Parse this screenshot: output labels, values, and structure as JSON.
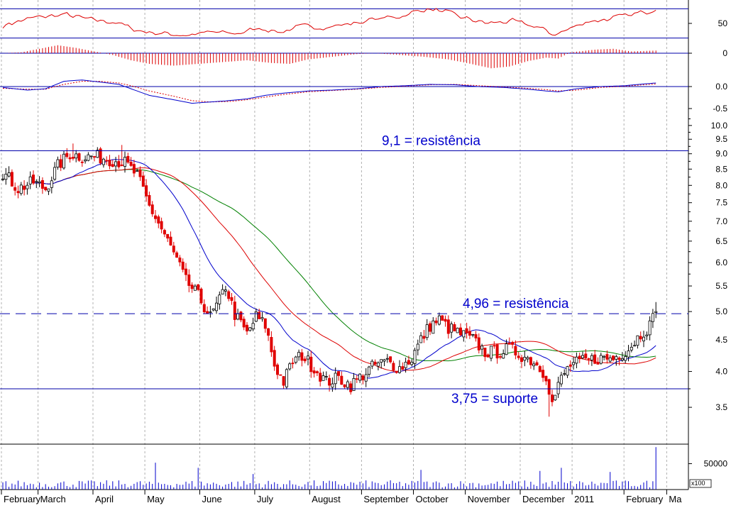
{
  "chart_data": {
    "type": "candlestick",
    "colors": {
      "up": "#000000",
      "down": "#e00000",
      "ma_short": "#0000cc",
      "ma_mid": "#dd0000",
      "ma_long": "#008000",
      "level_line": "#0000aa",
      "annotation": "#0000cc",
      "rsi": "#dd0000",
      "histogram": "#dd0000",
      "macd": "#0000cc",
      "signal": "#dd0000",
      "volume": "#0000cc"
    },
    "x_axis": {
      "months": [
        "February",
        "March",
        "April",
        "May",
        "June",
        "July",
        "August",
        "September",
        "October",
        "November",
        "December",
        "2011",
        "February",
        "Ma"
      ],
      "month_start_index": [
        0,
        12,
        30,
        47,
        65,
        83,
        101,
        118,
        135,
        152,
        170,
        187,
        204,
        218
      ]
    },
    "price_panel": {
      "scale": "log",
      "ylim": [
        3.1,
        10.4
      ],
      "ticks": [
        "3.5",
        "4.0",
        "4.5",
        "5.0",
        "5.5",
        "6.0",
        "6.5",
        "7.0",
        "7.5",
        "8.0",
        "8.5",
        "9.0",
        "9.5",
        "10.0"
      ],
      "levels": [
        {
          "value": 9.1,
          "label": "9,1 = resistência",
          "style": "solid"
        },
        {
          "value": 4.96,
          "label": "4,96 = resistência",
          "style": "dashed"
        },
        {
          "value": 3.75,
          "label": "3,75 = suporte",
          "style": "solid"
        }
      ],
      "close_anchors": [
        [
          0,
          8.4
        ],
        [
          5,
          7.9
        ],
        [
          10,
          8.1
        ],
        [
          14,
          7.9
        ],
        [
          18,
          8.6
        ],
        [
          22,
          9.0
        ],
        [
          26,
          8.9
        ],
        [
          31,
          8.9
        ],
        [
          36,
          8.8
        ],
        [
          40,
          8.7
        ],
        [
          44,
          8.3
        ],
        [
          48,
          7.4
        ],
        [
          52,
          6.8
        ],
        [
          56,
          6.2
        ],
        [
          60,
          5.6
        ],
        [
          64,
          5.3
        ],
        [
          68,
          4.9
        ],
        [
          71,
          5.2
        ],
        [
          73,
          5.5
        ],
        [
          76,
          4.95
        ],
        [
          80,
          4.6
        ],
        [
          83,
          4.9
        ],
        [
          86,
          4.75
        ],
        [
          89,
          4.1
        ],
        [
          92,
          3.85
        ],
        [
          95,
          4.15
        ],
        [
          98,
          4.25
        ],
        [
          102,
          4.05
        ],
        [
          106,
          3.85
        ],
        [
          110,
          3.9
        ],
        [
          114,
          3.8
        ],
        [
          118,
          3.95
        ],
        [
          122,
          4.1
        ],
        [
          126,
          4.15
        ],
        [
          130,
          4.05
        ],
        [
          134,
          4.2
        ],
        [
          137,
          4.5
        ],
        [
          140,
          4.75
        ],
        [
          143,
          4.85
        ],
        [
          146,
          4.7
        ],
        [
          150,
          4.6
        ],
        [
          154,
          4.5
        ],
        [
          158,
          4.3
        ],
        [
          162,
          4.3
        ],
        [
          166,
          4.35
        ],
        [
          170,
          4.25
        ],
        [
          174,
          4.15
        ],
        [
          178,
          3.95
        ],
        [
          180,
          3.55
        ],
        [
          183,
          3.9
        ],
        [
          186,
          4.1
        ],
        [
          190,
          4.15
        ],
        [
          195,
          4.2
        ],
        [
          200,
          4.2
        ],
        [
          205,
          4.35
        ],
        [
          209,
          4.6
        ],
        [
          212,
          4.75
        ],
        [
          214,
          5.0
        ]
      ]
    },
    "rsi_panel": {
      "ticks": [
        "50"
      ],
      "lines": [
        70,
        30
      ],
      "anchors": [
        [
          0,
          48
        ],
        [
          10,
          58
        ],
        [
          20,
          62
        ],
        [
          28,
          55
        ],
        [
          36,
          52
        ],
        [
          44,
          40
        ],
        [
          52,
          36
        ],
        [
          60,
          34
        ],
        [
          68,
          38
        ],
        [
          76,
          36
        ],
        [
          84,
          44
        ],
        [
          90,
          38
        ],
        [
          98,
          46
        ],
        [
          106,
          45
        ],
        [
          114,
          50
        ],
        [
          122,
          56
        ],
        [
          130,
          60
        ],
        [
          138,
          70
        ],
        [
          144,
          66
        ],
        [
          150,
          58
        ],
        [
          158,
          50
        ],
        [
          166,
          53
        ],
        [
          174,
          46
        ],
        [
          180,
          35
        ],
        [
          184,
          40
        ],
        [
          190,
          52
        ],
        [
          198,
          56
        ],
        [
          206,
          62
        ],
        [
          212,
          68
        ],
        [
          214,
          73
        ]
      ]
    },
    "histogram_panel": {
      "ticks": [
        "0"
      ],
      "anchors": [
        [
          0,
          0
        ],
        [
          6,
          0.05
        ],
        [
          12,
          0.25
        ],
        [
          18,
          0.45
        ],
        [
          24,
          0.3
        ],
        [
          30,
          0.1
        ],
        [
          36,
          -0.1
        ],
        [
          42,
          -0.4
        ],
        [
          48,
          -0.6
        ],
        [
          56,
          -0.7
        ],
        [
          64,
          -0.6
        ],
        [
          72,
          -0.5
        ],
        [
          80,
          -0.4
        ],
        [
          88,
          -0.55
        ],
        [
          94,
          -0.6
        ],
        [
          100,
          -0.35
        ],
        [
          108,
          -0.2
        ],
        [
          116,
          -0.05
        ],
        [
          122,
          0.0
        ],
        [
          130,
          -0.1
        ],
        [
          138,
          -0.2
        ],
        [
          146,
          -0.35
        ],
        [
          152,
          -0.55
        ],
        [
          160,
          -0.85
        ],
        [
          166,
          -0.75
        ],
        [
          172,
          -0.45
        ],
        [
          178,
          -0.25
        ],
        [
          182,
          -0.3
        ],
        [
          186,
          0.05
        ],
        [
          194,
          0.2
        ],
        [
          200,
          0.25
        ],
        [
          206,
          0.1
        ],
        [
          214,
          0.15
        ]
      ]
    },
    "macd_panel": {
      "ticks": [
        "0.0",
        "-0.5"
      ],
      "macd_anchors": [
        [
          0,
          -0.02
        ],
        [
          8,
          -0.08
        ],
        [
          14,
          -0.05
        ],
        [
          20,
          0.12
        ],
        [
          26,
          0.15
        ],
        [
          32,
          0.1
        ],
        [
          38,
          0.05
        ],
        [
          42,
          -0.05
        ],
        [
          48,
          -0.2
        ],
        [
          56,
          -0.3
        ],
        [
          62,
          -0.38
        ],
        [
          68,
          -0.35
        ],
        [
          74,
          -0.32
        ],
        [
          80,
          -0.28
        ],
        [
          86,
          -0.2
        ],
        [
          92,
          -0.15
        ],
        [
          100,
          -0.1
        ],
        [
          108,
          -0.08
        ],
        [
          116,
          -0.05
        ],
        [
          124,
          0.0
        ],
        [
          132,
          0.02
        ],
        [
          140,
          0.05
        ],
        [
          148,
          0.04
        ],
        [
          156,
          0.0
        ],
        [
          164,
          -0.02
        ],
        [
          172,
          -0.06
        ],
        [
          178,
          -0.1
        ],
        [
          182,
          -0.12
        ],
        [
          188,
          -0.05
        ],
        [
          196,
          0.0
        ],
        [
          204,
          0.02
        ],
        [
          210,
          0.06
        ],
        [
          214,
          0.08
        ]
      ],
      "signal_anchors": [
        [
          0,
          -0.04
        ],
        [
          8,
          -0.06
        ],
        [
          14,
          -0.06
        ],
        [
          20,
          0.05
        ],
        [
          26,
          0.12
        ],
        [
          32,
          0.12
        ],
        [
          38,
          0.08
        ],
        [
          42,
          0.02
        ],
        [
          48,
          -0.1
        ],
        [
          56,
          -0.22
        ],
        [
          62,
          -0.32
        ],
        [
          68,
          -0.35
        ],
        [
          74,
          -0.34
        ],
        [
          80,
          -0.3
        ],
        [
          86,
          -0.24
        ],
        [
          92,
          -0.18
        ],
        [
          100,
          -0.12
        ],
        [
          108,
          -0.09
        ],
        [
          116,
          -0.06
        ],
        [
          124,
          -0.02
        ],
        [
          132,
          0.01
        ],
        [
          140,
          0.04
        ],
        [
          148,
          0.05
        ],
        [
          156,
          0.02
        ],
        [
          164,
          -0.01
        ],
        [
          172,
          -0.04
        ],
        [
          178,
          -0.07
        ],
        [
          182,
          -0.1
        ],
        [
          188,
          -0.08
        ],
        [
          196,
          -0.02
        ],
        [
          204,
          0.01
        ],
        [
          210,
          0.04
        ],
        [
          214,
          0.06
        ]
      ]
    },
    "volume_panel": {
      "ticks": [
        "50000"
      ],
      "multiplier_label": "x100",
      "ylim": [
        0,
        85000
      ],
      "spikes": [
        [
          50,
          52000
        ],
        [
          64,
          42000
        ],
        [
          82,
          30000
        ],
        [
          137,
          38000
        ],
        [
          176,
          36000
        ],
        [
          183,
          42000
        ],
        [
          199,
          34000
        ],
        [
          214,
          82000
        ]
      ]
    }
  }
}
